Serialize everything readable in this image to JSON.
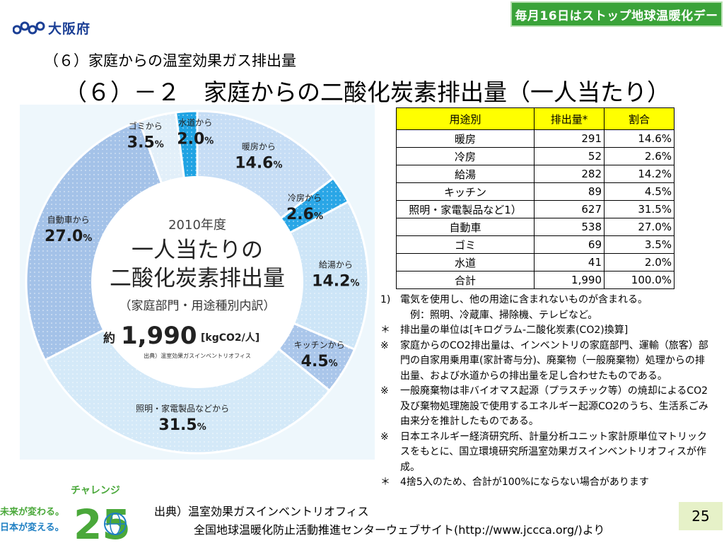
{
  "header": {
    "logo_text": "大阪府",
    "banner": "毎月16日はストップ地球温暖化デー",
    "section_title": "（６）家庭からの温室効果ガス排出量",
    "main_title": "（６）－２　家庭からの二酸化炭素排出量（一人当たり）"
  },
  "chart_data": {
    "type": "pie",
    "style": "donut",
    "center_year": "2010年度",
    "center_title_1": "一人当たりの",
    "center_title_2": "二酸化炭素排出量",
    "center_subtitle": "（家庭部門・用途種別内訳）",
    "center_total_prefix": "約",
    "center_total": "1,990",
    "center_total_unit": "[kgCO2/人]",
    "center_source": "出典）温室効果ガスインベントリオフィス",
    "slices": [
      {
        "name": "暖房から",
        "label": "14.6",
        "value": 14.6,
        "color": "#c6ddf5"
      },
      {
        "name": "冷房から",
        "label": "2.6",
        "value": 2.6,
        "color": "#2aa6e6"
      },
      {
        "name": "給湯から",
        "label": "14.2",
        "value": 14.2,
        "color": "#cde5f7"
      },
      {
        "name": "キッチンから",
        "label": "4.5",
        "value": 4.5,
        "color": "#aac6ea"
      },
      {
        "name": "照明・家電製品などから",
        "label": "31.5",
        "value": 31.5,
        "color": "#d4e9f8"
      },
      {
        "name": "自動車から",
        "label": "27.0",
        "value": 27.0,
        "color": "#a4c2e8"
      },
      {
        "name": "ゴミから",
        "label": "3.5",
        "value": 3.5,
        "color": "#e2eff9"
      },
      {
        "name": "水道から",
        "label": "2.0",
        "value": 2.0,
        "color": "#1fa3e3"
      }
    ],
    "percent_sign": "%"
  },
  "table": {
    "headers": [
      "用途別",
      "排出量*",
      "割合"
    ],
    "rows": [
      [
        "暖房",
        "291",
        "14.6%"
      ],
      [
        "冷房",
        "52",
        "2.6%"
      ],
      [
        "給湯",
        "282",
        "14.2%"
      ],
      [
        "キッチン",
        "89",
        "4.5%"
      ],
      [
        "照明・家電製品など1）",
        "627",
        "31.5%"
      ],
      [
        "自動車",
        "538",
        "27.0%"
      ],
      [
        "ゴミ",
        "69",
        "3.5%"
      ],
      [
        "水道",
        "41",
        "2.0%"
      ],
      [
        "合計",
        "1,990",
        "100.0%"
      ]
    ]
  },
  "notes": [
    {
      "mark": "1)",
      "text": "電気を使用し、他の用途に含まれないものが含まれる。"
    },
    {
      "mark": "",
      "text": "　例：照明、冷蔵庫、掃除機、テレビなど。"
    },
    {
      "mark": "＊",
      "text": "排出量の単位は[キログラム-二酸化炭素(CO2)換算]"
    },
    {
      "mark": "※",
      "text": "家庭からのCO2排出量は、インベントリの家庭部門、運輸（旅客）部門の自家用乗用車(家計寄与分)、廃棄物（一般廃棄物）処理からの排出量、および水道からの排出量を足し合わせたものである。"
    },
    {
      "mark": "※",
      "text": "一般廃棄物は非バイオマス起源（プラスチック等）の焼却によるCO2及び棄物処理施設で使用するエネルギー起源CO2のうち、生活系ごみ由来分を推計したものである。"
    },
    {
      "mark": "※",
      "text": "日本エネルギー経済研究所、計量分析ユニット家計原単位マトリックスをもとに、国立環境研究所温室効果ガスインベントリオフィスが作成。"
    },
    {
      "mark": "＊",
      "text": "4捨5入のため、合計が100%にならない場合があります"
    }
  ],
  "challenge": {
    "top": "チャレンジ",
    "line1": "未来が変わる。",
    "line2": "日本が変える。",
    "number": "25"
  },
  "footer": {
    "source_1": "出典）温室効果ガスインベントリオフィス",
    "source_2": "全国地球温暖化防止活動推進センターウェブサイト(http://www.jccca.org/)より",
    "page_number": "25"
  },
  "colors": {
    "banner": "#3aa339",
    "table_header": "#ffff00",
    "logo": "#1b3f95",
    "challenge_green": "#4aa83a",
    "challenge_blue": "#1e7fc3"
  }
}
